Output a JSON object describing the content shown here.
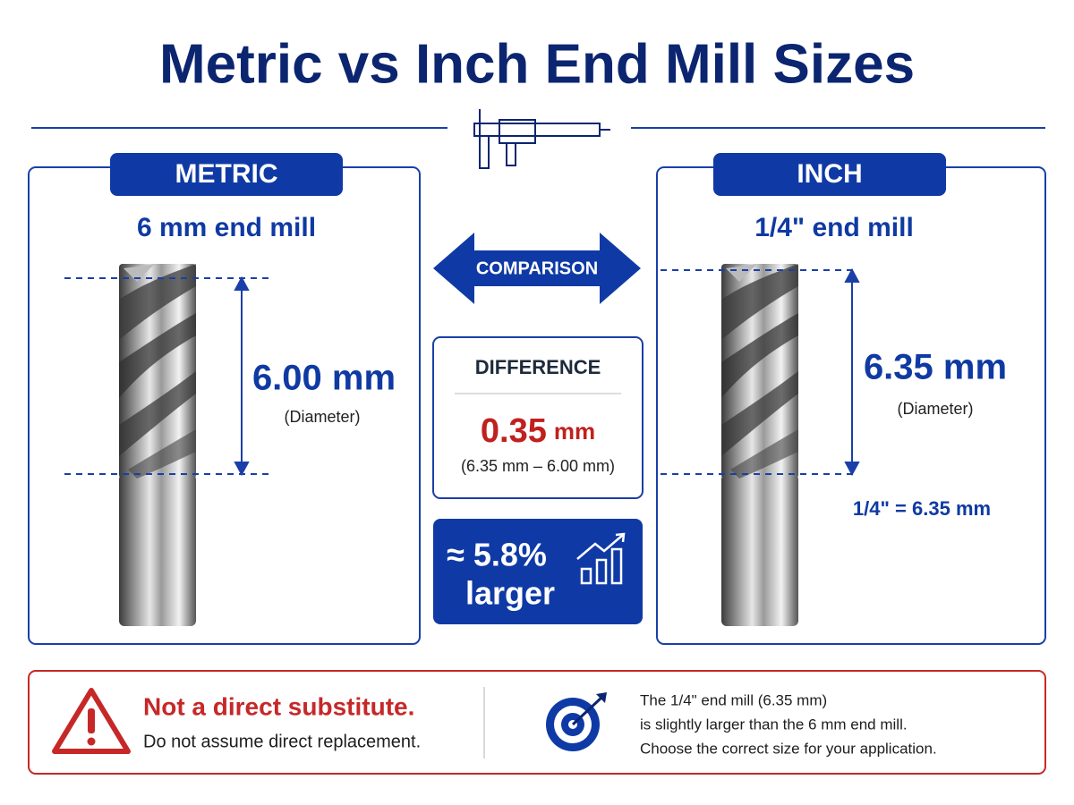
{
  "header": {
    "title": "Metric vs Inch End Mill Sizes"
  },
  "metric": {
    "label": "METRIC",
    "subtitle": "6 mm end mill",
    "measure": "6.00 mm",
    "caption": "(Diameter)"
  },
  "comparison": {
    "label": "COMPARISON"
  },
  "difference": {
    "label": "DIFFERENCE",
    "value": "0.35",
    "unit": "mm",
    "formula": "(6.35 mm – 6.00 mm)"
  },
  "percent": {
    "value": "≈ 5.8%",
    "caption": "larger"
  },
  "inch": {
    "label": "INCH",
    "subtitle": "1/4\" end mill",
    "measure": "6.35 mm",
    "caption": "(Diameter)",
    "conversion": "1/4\" = 6.35 mm"
  },
  "footer": {
    "warning_title": "Not a direct substitute.",
    "warning_text": "Do not assume direct replacement.",
    "info_lines": [
      "The 1/4\" end mill (6.35 mm)",
      "is slightly larger than the 6 mm end mill.",
      "Choose the correct size for your application."
    ]
  }
}
